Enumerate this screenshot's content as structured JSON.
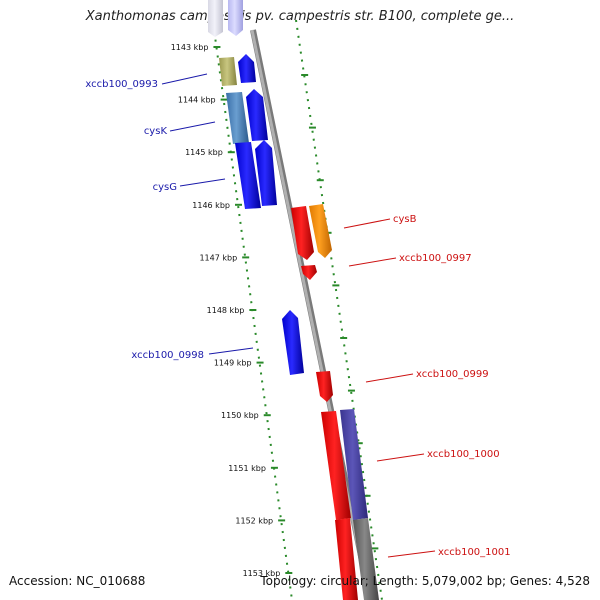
{
  "title": "Xanthomonas campestris pv. campestris str. B100, complete ge...",
  "footer": {
    "accession": "Accession: NC_010688",
    "summary": "Topology: circular; Length: 5,079,002 bp; Genes: 4,528"
  },
  "ticks": [
    "1143 kbp",
    "1144 kbp",
    "1145 kbp",
    "1146 kbp",
    "1147 kbp",
    "1148 kbp",
    "1149 kbp",
    "1150 kbp",
    "1151 kbp",
    "1152 kbp",
    "1153 kbp"
  ],
  "labels": {
    "left": [
      "xccb100_0993",
      "cysK",
      "cysG",
      "xccb100_0998"
    ],
    "right": [
      "cysB",
      "xccb100_0997",
      "xccb100_0999",
      "xccb100_1000",
      "xccb100_1001"
    ]
  },
  "colors": {
    "forward": "#0000ee",
    "reverse": "#ee0000",
    "backbone": "#9a9a9a",
    "tick": "#2a8a2a",
    "left_label": "#1a1aaa",
    "right_label": "#cc1111"
  }
}
